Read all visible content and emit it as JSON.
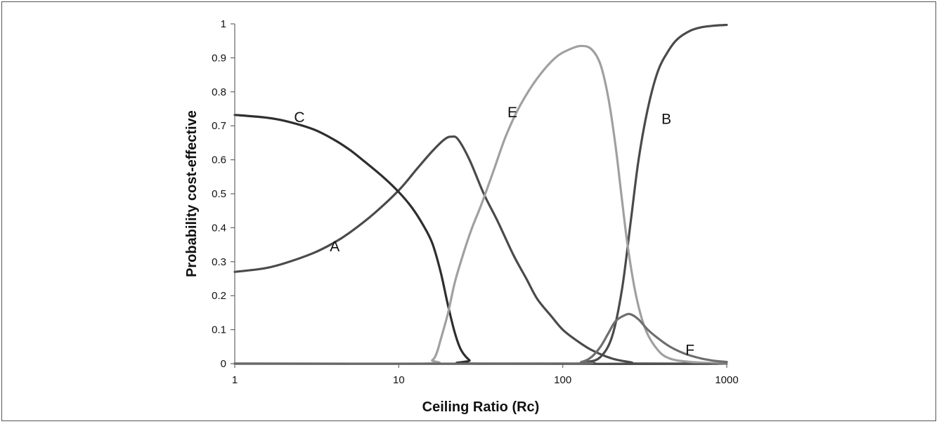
{
  "chart_data": {
    "type": "line",
    "title": "",
    "xlabel": "Ceiling Ratio (Rc)",
    "ylabel": "Probability cost-effective",
    "xscale": "log",
    "xlim": [
      1,
      1000
    ],
    "ylim": [
      0,
      1
    ],
    "x_ticks": [
      "1",
      "10",
      "100",
      "1000"
    ],
    "y_ticks": [
      "0",
      "0.1",
      "0.2",
      "0.3",
      "0.4",
      "0.5",
      "0.6",
      "0.7",
      "0.8",
      "0.9",
      "1"
    ],
    "grid": false,
    "legend": "none",
    "series": [
      {
        "name": "A",
        "color": "#4a4a4a",
        "label_at": [
          3.8,
          0.345
        ],
        "points": [
          [
            1,
            0.27
          ],
          [
            1.5,
            0.28
          ],
          [
            2,
            0.295
          ],
          [
            3,
            0.325
          ],
          [
            4,
            0.355
          ],
          [
            5,
            0.385
          ],
          [
            7,
            0.44
          ],
          [
            10,
            0.51
          ],
          [
            13,
            0.575
          ],
          [
            16,
            0.625
          ],
          [
            19,
            0.66
          ],
          [
            21,
            0.668
          ],
          [
            23,
            0.66
          ],
          [
            27,
            0.6
          ],
          [
            33,
            0.5
          ],
          [
            40,
            0.42
          ],
          [
            50,
            0.32
          ],
          [
            60,
            0.25
          ],
          [
            70,
            0.19
          ],
          [
            85,
            0.14
          ],
          [
            100,
            0.1
          ],
          [
            120,
            0.07
          ],
          [
            150,
            0.04
          ],
          [
            200,
            0.015
          ],
          [
            260,
            0.004
          ],
          [
            300,
            0
          ],
          [
            1000,
            0
          ]
        ]
      },
      {
        "name": "B",
        "color": "#4a4a4a",
        "label_at": [
          400,
          0.72
        ],
        "points": [
          [
            1,
            0
          ],
          [
            100,
            0
          ],
          [
            140,
            0.005
          ],
          [
            170,
            0.02
          ],
          [
            200,
            0.08
          ],
          [
            230,
            0.22
          ],
          [
            260,
            0.42
          ],
          [
            290,
            0.6
          ],
          [
            330,
            0.75
          ],
          [
            380,
            0.86
          ],
          [
            440,
            0.92
          ],
          [
            500,
            0.955
          ],
          [
            600,
            0.98
          ],
          [
            700,
            0.99
          ],
          [
            850,
            0.995
          ],
          [
            1000,
            0.997
          ]
        ]
      },
      {
        "name": "C",
        "color": "#2e2e2e",
        "label_at": [
          2.3,
          0.725
        ],
        "points": [
          [
            1,
            0.732
          ],
          [
            1.5,
            0.725
          ],
          [
            2,
            0.715
          ],
          [
            3,
            0.69
          ],
          [
            4,
            0.66
          ],
          [
            5,
            0.63
          ],
          [
            6,
            0.6
          ],
          [
            8,
            0.55
          ],
          [
            10,
            0.505
          ],
          [
            12,
            0.46
          ],
          [
            14,
            0.41
          ],
          [
            16,
            0.355
          ],
          [
            18,
            0.27
          ],
          [
            20,
            0.17
          ],
          [
            22,
            0.09
          ],
          [
            24,
            0.04
          ],
          [
            27,
            0.01
          ],
          [
            30,
            0
          ],
          [
            1000,
            0
          ]
        ]
      },
      {
        "name": "E",
        "color": "#a0a0a0",
        "label_at": [
          46,
          0.74
        ],
        "points": [
          [
            1,
            0
          ],
          [
            14,
            0
          ],
          [
            16,
            0.01
          ],
          [
            17,
            0.03
          ],
          [
            18,
            0.07
          ],
          [
            20,
            0.15
          ],
          [
            22,
            0.24
          ],
          [
            25,
            0.33
          ],
          [
            28,
            0.4
          ],
          [
            32,
            0.47
          ],
          [
            38,
            0.57
          ],
          [
            45,
            0.67
          ],
          [
            55,
            0.76
          ],
          [
            70,
            0.84
          ],
          [
            90,
            0.9
          ],
          [
            110,
            0.925
          ],
          [
            130,
            0.935
          ],
          [
            150,
            0.925
          ],
          [
            170,
            0.88
          ],
          [
            190,
            0.78
          ],
          [
            210,
            0.64
          ],
          [
            230,
            0.48
          ],
          [
            250,
            0.34
          ],
          [
            280,
            0.2
          ],
          [
            320,
            0.1
          ],
          [
            380,
            0.04
          ],
          [
            450,
            0.015
          ],
          [
            600,
            0.005
          ],
          [
            1000,
            0
          ]
        ]
      },
      {
        "name": "F",
        "color": "#6e6e6e",
        "label_at": [
          560,
          0.04
        ],
        "points": [
          [
            1,
            0
          ],
          [
            100,
            0
          ],
          [
            130,
            0.005
          ],
          [
            150,
            0.02
          ],
          [
            170,
            0.05
          ],
          [
            190,
            0.09
          ],
          [
            210,
            0.125
          ],
          [
            240,
            0.143
          ],
          [
            260,
            0.145
          ],
          [
            290,
            0.13
          ],
          [
            330,
            0.1
          ],
          [
            380,
            0.075
          ],
          [
            450,
            0.05
          ],
          [
            550,
            0.03
          ],
          [
            700,
            0.015
          ],
          [
            850,
            0.008
          ],
          [
            1000,
            0.005
          ]
        ]
      }
    ]
  }
}
